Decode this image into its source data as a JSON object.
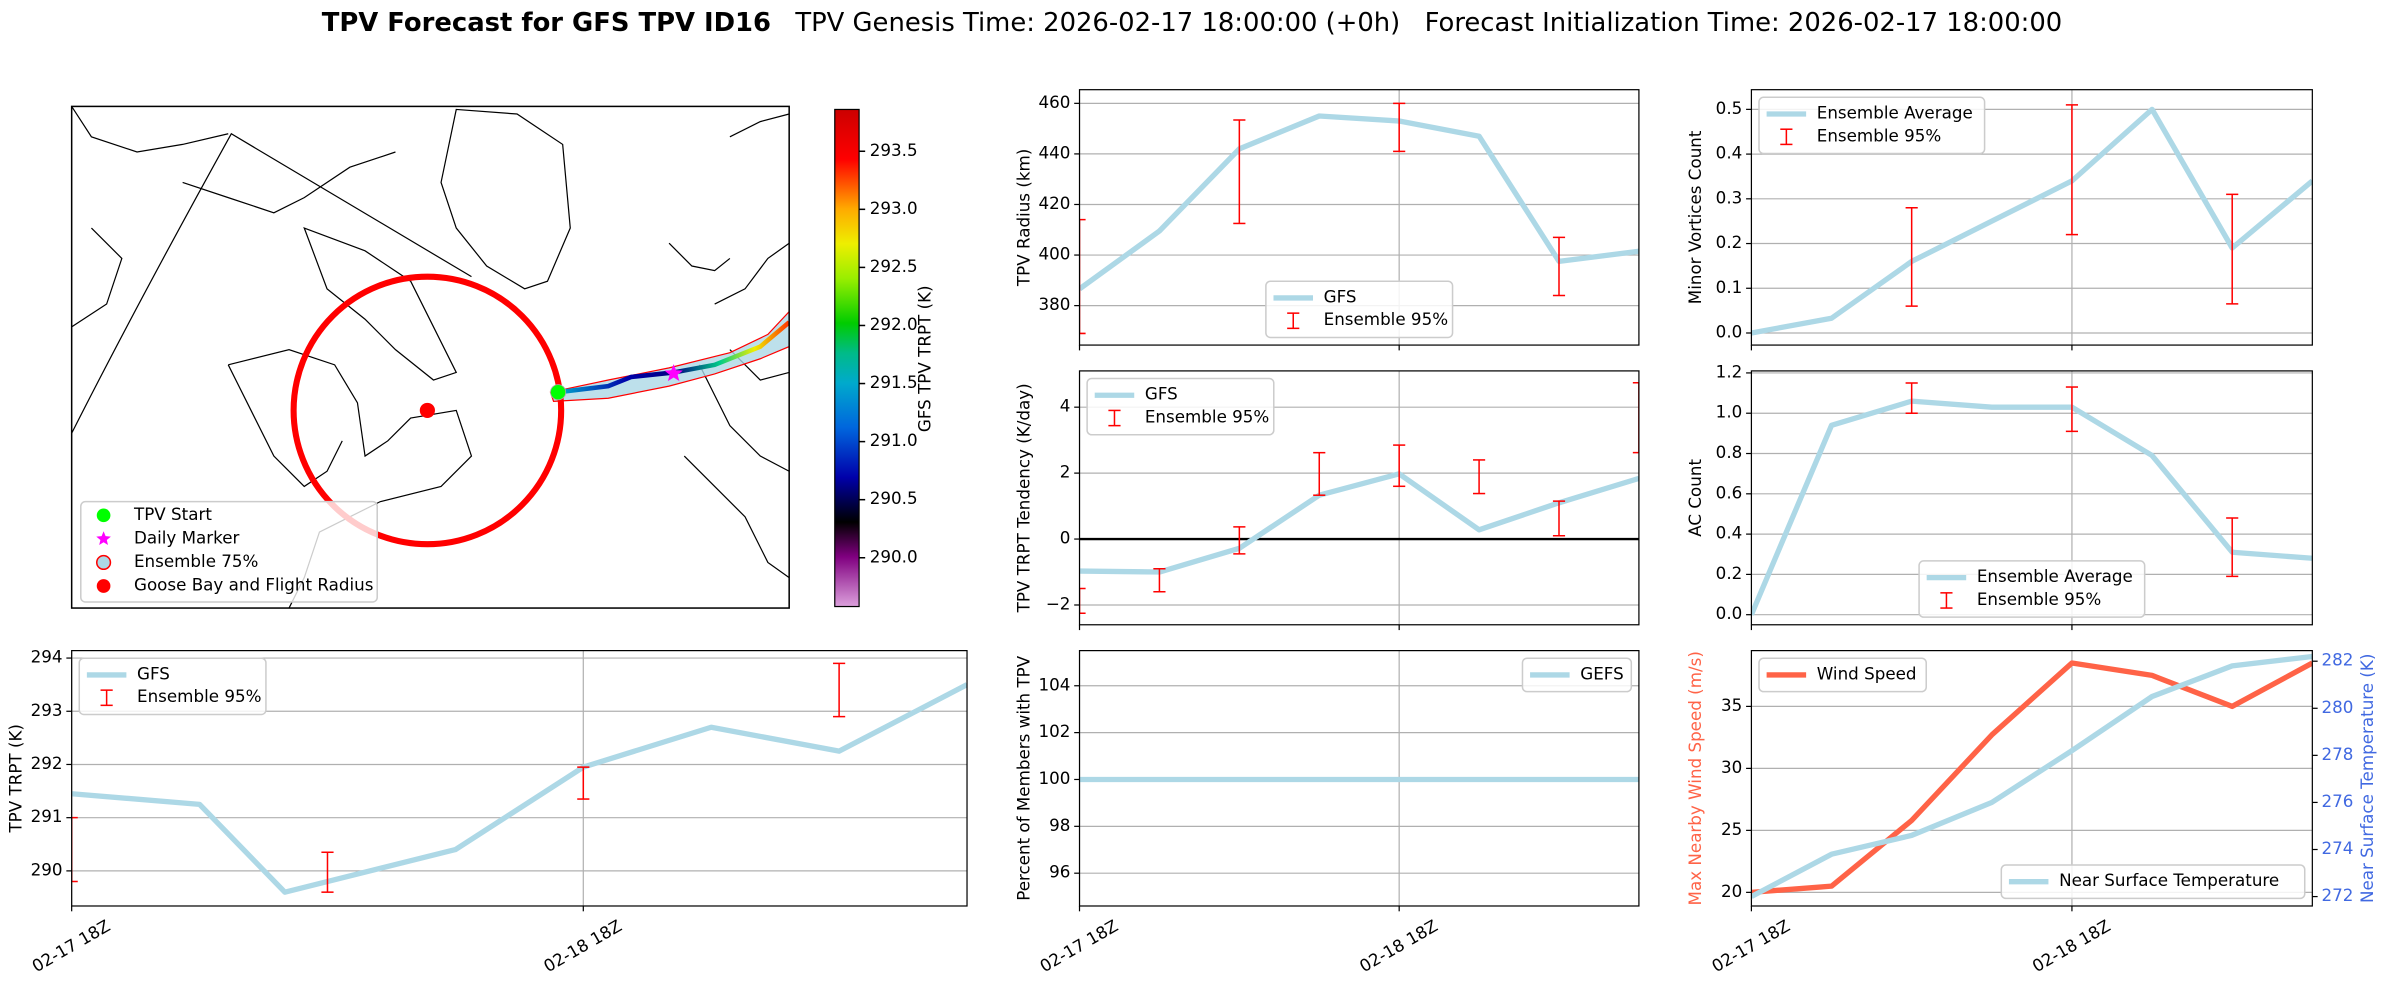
{
  "suptitle": [
    "TPV Forecast for GFS TPV ID16",
    "TPV Genesis Time: 2026-02-17 18:00:00 (+0h)",
    "Forecast Initialization Time: 2026-02-17 18:00:00"
  ],
  "chart_data": [
    {
      "type": "map",
      "colorbar": {
        "label": "GFS TPV TRPT (K)",
        "lim": [
          289.58,
          293.86
        ],
        "ticks": [
          {
            "value": 290,
            "label": "290.0"
          },
          {
            "value": 290.5,
            "label": "290.5"
          },
          {
            "value": 291,
            "label": "291.0"
          },
          {
            "value": 291.5,
            "label": "291.5"
          },
          {
            "value": 292,
            "label": "292.0"
          },
          {
            "value": 292.5,
            "label": "292.5"
          },
          {
            "value": 293,
            "label": "293.0"
          },
          {
            "value": 293.5,
            "label": "293.5"
          }
        ]
      },
      "legend_items": [
        {
          "name": "TPV Start",
          "color": "#00ff00",
          "marker": "circle"
        },
        {
          "name": "Daily Marker",
          "color": "#ff00ff",
          "marker": "star"
        },
        {
          "name": "Ensemble 75%",
          "color": "#add8e6",
          "edgecolor": "#ff0000",
          "marker": "circle"
        },
        {
          "name": "Goose Bay and Flight Radius",
          "color": "#ff0000",
          "marker": "circle"
        }
      ]
    },
    {
      "type": "line",
      "ylabel": "TPV Radius (km)",
      "xlim": [
        0,
        42
      ],
      "ylim": [
        364.4,
        465.4
      ],
      "yticks": [
        380,
        400,
        420,
        440,
        460
      ],
      "xticks": [
        0,
        24
      ],
      "grid": true,
      "legend": "lower center",
      "x": [
        0,
        6,
        12,
        18,
        24,
        30,
        36,
        42
      ],
      "series": [
        {
          "name": "GFS",
          "color": "#add8e6",
          "values": [
            386.6,
            409.5,
            442,
            455,
            453,
            447,
            397.5,
            401.5
          ]
        },
        {
          "name": "Ensemble 95%",
          "color": "#ff0000",
          "x": [
            0,
            12,
            24,
            36
          ],
          "lower": [
            369,
            412.5,
            441,
            384
          ],
          "upper": [
            414,
            453.4,
            460,
            407
          ]
        }
      ]
    },
    {
      "type": "line",
      "ylabel": "Minor Vortices Count",
      "xlim": [
        0,
        42
      ],
      "ylim": [
        -0.027,
        0.544
      ],
      "yticks": [
        {
          "value": 0,
          "label": "0.0"
        },
        {
          "value": 0.1,
          "label": "0.1"
        },
        {
          "value": 0.2,
          "label": "0.2"
        },
        {
          "value": 0.3,
          "label": "0.3"
        },
        {
          "value": 0.4,
          "label": "0.4"
        },
        {
          "value": 0.5,
          "label": "0.5"
        }
      ],
      "xticks": [
        0,
        24
      ],
      "grid": true,
      "legend": "upper left",
      "x": [
        0,
        6,
        12,
        18,
        24,
        30,
        36,
        42
      ],
      "series": [
        {
          "name": "Ensemble Average",
          "color": "#add8e6",
          "values": [
            0,
            0.033,
            0.16,
            0.25,
            0.34,
            0.5,
            0.19,
            0.34
          ]
        },
        {
          "name": "Ensemble 95%",
          "color": "#ff0000",
          "x": [
            12,
            24,
            36
          ],
          "lower": [
            0.06,
            0.22,
            0.065
          ],
          "upper": [
            0.28,
            0.51,
            0.31
          ]
        }
      ]
    },
    {
      "type": "line",
      "ylabel": "TPV TRPT Tendency (K/day)",
      "xlim": [
        0,
        42
      ],
      "ylim": [
        -2.6,
        5.1
      ],
      "yticks": [
        {
          "value": -2,
          "label": "−2"
        },
        0,
        2,
        4
      ],
      "xticks": [
        0,
        24
      ],
      "grid": true,
      "legend": "upper left",
      "hline": 0,
      "x": [
        0,
        6,
        12,
        18,
        24,
        30,
        36,
        42
      ],
      "series": [
        {
          "name": "GFS",
          "color": "#add8e6",
          "values": [
            -0.97,
            -1.0,
            -0.28,
            1.33,
            1.98,
            0.28,
            1.1,
            1.84
          ]
        },
        {
          "name": "Ensemble 95%",
          "color": "#ff0000",
          "x": [
            0,
            6,
            12,
            18,
            24,
            30,
            36,
            42
          ],
          "lower": [
            -2.25,
            -1.6,
            -0.45,
            1.33,
            1.6,
            1.38,
            0.1,
            2.62
          ],
          "upper": [
            -1.5,
            -0.9,
            0.37,
            2.62,
            2.85,
            2.4,
            1.15,
            4.74
          ]
        }
      ]
    },
    {
      "type": "line",
      "ylabel": "AC Count",
      "xlim": [
        0,
        42
      ],
      "ylim": [
        -0.05,
        1.21
      ],
      "yticks": [
        {
          "value": 0,
          "label": "0.0"
        },
        {
          "value": 0.2,
          "label": "0.2"
        },
        {
          "value": 0.4,
          "label": "0.4"
        },
        {
          "value": 0.6,
          "label": "0.6"
        },
        {
          "value": 0.8,
          "label": "0.8"
        },
        {
          "value": 1,
          "label": "1.0"
        },
        {
          "value": 1.2,
          "label": "1.2"
        }
      ],
      "xticks": [
        0,
        24
      ],
      "grid": true,
      "legend": "lower center",
      "x": [
        0,
        6,
        12,
        18,
        24,
        30,
        36,
        42
      ],
      "series": [
        {
          "name": "Ensemble Average",
          "color": "#add8e6",
          "values": [
            0,
            0.94,
            1.06,
            1.03,
            1.03,
            0.79,
            0.31,
            0.28
          ]
        },
        {
          "name": "Ensemble 95%",
          "color": "#ff0000",
          "x": [
            12,
            24,
            36
          ],
          "lower": [
            1.0,
            0.91,
            0.19
          ],
          "upper": [
            1.15,
            1.13,
            0.48
          ]
        }
      ]
    },
    {
      "type": "line",
      "ylabel": "TPV TRPT (K)",
      "xlim": [
        0,
        42
      ],
      "ylim": [
        289.34,
        294.14
      ],
      "yticks": [
        290,
        291,
        292,
        293,
        294
      ],
      "xticks": [
        {
          "value": 0,
          "label": "02-17 18Z"
        },
        {
          "value": 24,
          "label": "02-18 18Z"
        }
      ],
      "grid": true,
      "legend": "upper left",
      "x": [
        0,
        6,
        10,
        18,
        24,
        30,
        36,
        42
      ],
      "series": [
        {
          "name": "GFS",
          "color": "#add8e6",
          "values": [
            291.45,
            291.25,
            289.6,
            290.4,
            291.95,
            292.7,
            292.25,
            293.5
          ]
        },
        {
          "name": "Ensemble 95%",
          "color": "#ff0000",
          "x": [
            0,
            12,
            24,
            36
          ],
          "lower": [
            289.8,
            289.6,
            291.35,
            292.9
          ],
          "upper": [
            291.0,
            290.35,
            291.95,
            293.9
          ]
        }
      ]
    },
    {
      "type": "line",
      "ylabel": "Percent of Members with TPV",
      "xlim": [
        0,
        42
      ],
      "ylim": [
        94.6,
        105.5
      ],
      "yticks": [
        96,
        98,
        100,
        102,
        104
      ],
      "xticks": [
        {
          "value": 0,
          "label": "02-17 18Z"
        },
        {
          "value": 24,
          "label": "02-18 18Z"
        }
      ],
      "grid": true,
      "legend": "upper right",
      "x": [
        0,
        6,
        12,
        18,
        24,
        30,
        36,
        42
      ],
      "series": [
        {
          "name": "GEFS",
          "color": "#add8e6",
          "values": [
            100,
            100,
            100,
            100,
            100,
            100,
            100,
            100
          ]
        }
      ]
    },
    {
      "type": "line",
      "ylabel": "Max Nearby Wind Speed (m/s)",
      "ylabel_color": "#ff6347",
      "y2label": "Near Surface Temperature (K)",
      "y2label_color": "#4169e1",
      "xlim": [
        0,
        42
      ],
      "ylim": [
        18.9,
        39.5
      ],
      "yticks": [
        20,
        25,
        30,
        35
      ],
      "y2lim": [
        271.6,
        282.45
      ],
      "y2ticks": [
        272,
        274,
        276,
        278,
        280,
        282
      ],
      "xticks": [
        {
          "value": 0,
          "label": "02-17 18Z"
        },
        {
          "value": 24,
          "label": "02-18 18Z"
        }
      ],
      "grid": true,
      "x": [
        0,
        6,
        12,
        18,
        24,
        30,
        36,
        42
      ],
      "series": [
        {
          "name": "Wind Speed",
          "color": "#ff6347",
          "legend": "upper left",
          "values": [
            20.0,
            20.5,
            25.8,
            32.7,
            38.5,
            37.5,
            35.0,
            38.5
          ]
        },
        {
          "name": "Near Surface Temperature",
          "color": "#add8e6",
          "axis": "y2",
          "legend": "lower right",
          "values": [
            272.0,
            273.8,
            274.6,
            276.0,
            278.2,
            280.5,
            281.8,
            282.2
          ]
        }
      ]
    }
  ]
}
